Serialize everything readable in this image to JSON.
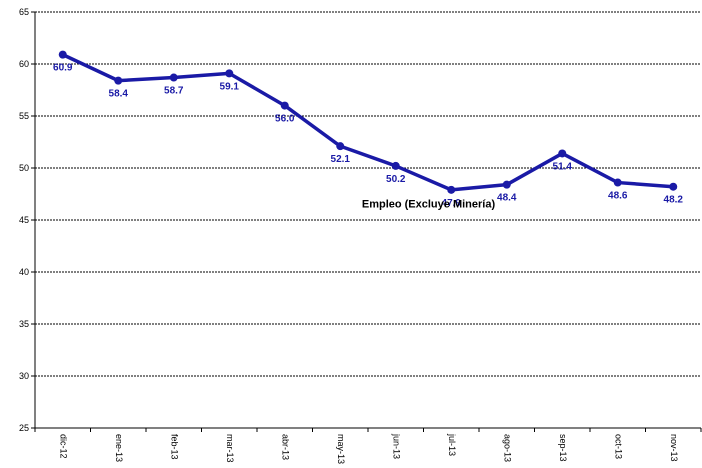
{
  "chart_data": {
    "type": "line",
    "categories": [
      "dic-12",
      "ene-13",
      "feb-13",
      "mar-13",
      "abr-13",
      "may-13",
      "jun-13",
      "jul-13",
      "ago-13",
      "sep-13",
      "oct-13",
      "nov-13"
    ],
    "series": [
      {
        "name": "Empleo (Excluye Minería)",
        "values": [
          60.9,
          58.4,
          58.7,
          59.1,
          56.0,
          52.1,
          50.2,
          47.9,
          48.4,
          51.4,
          48.6,
          48.2
        ],
        "labels": [
          "60.9",
          "58.4",
          "58.7",
          "59.1",
          "56.0",
          "52.1",
          "50.2",
          "47.9",
          "48.4",
          "51.4",
          "48.6",
          "48.2"
        ],
        "color": "#1a1aa6"
      }
    ],
    "ylim": [
      25,
      65
    ],
    "yticks": [
      25,
      30,
      35,
      40,
      45,
      50,
      55,
      60,
      65
    ],
    "ytick_labels": [
      "25",
      "30",
      "35",
      "40",
      "45",
      "50",
      "55",
      "60",
      "65"
    ],
    "grid": true,
    "xlabel": "",
    "ylabel": "",
    "title": ""
  }
}
